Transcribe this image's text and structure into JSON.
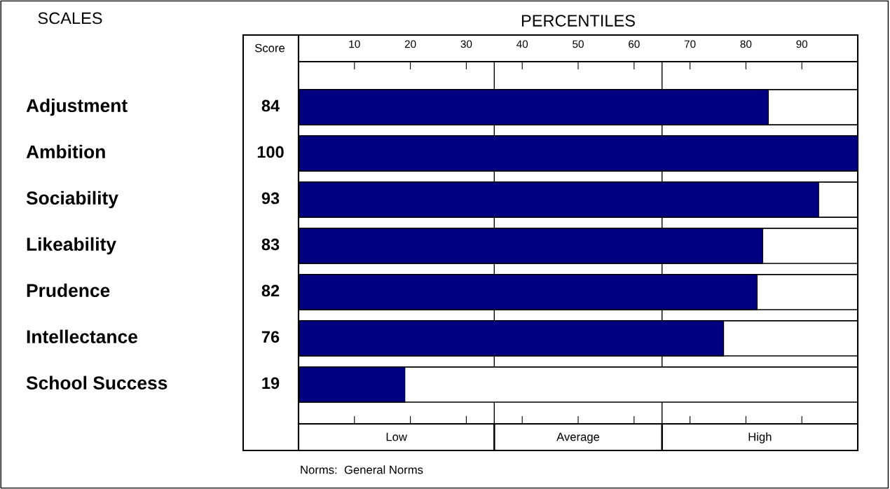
{
  "chart_data": {
    "type": "bar",
    "orientation": "horizontal",
    "xlabel": "PERCENTILES",
    "categories": [
      "Adjustment",
      "Ambition",
      "Sociability",
      "Likeability",
      "Prudence",
      "Intellectance",
      "School Success"
    ],
    "values": [
      84,
      100,
      93,
      83,
      82,
      76,
      19
    ],
    "color": "#000080",
    "data_labels": true,
    "xlim": [
      0,
      100
    ],
    "xticks": [
      10,
      20,
      30,
      40,
      50,
      60,
      70,
      80,
      90
    ],
    "grid": false,
    "ref_lines": [
      {
        "axis": "x",
        "value": 35
      },
      {
        "axis": "x",
        "value": 65
      }
    ],
    "annotations": [
      "SCALES",
      "Score",
      "Norms:  General Norms",
      "Low",
      "Average",
      "High"
    ]
  }
}
